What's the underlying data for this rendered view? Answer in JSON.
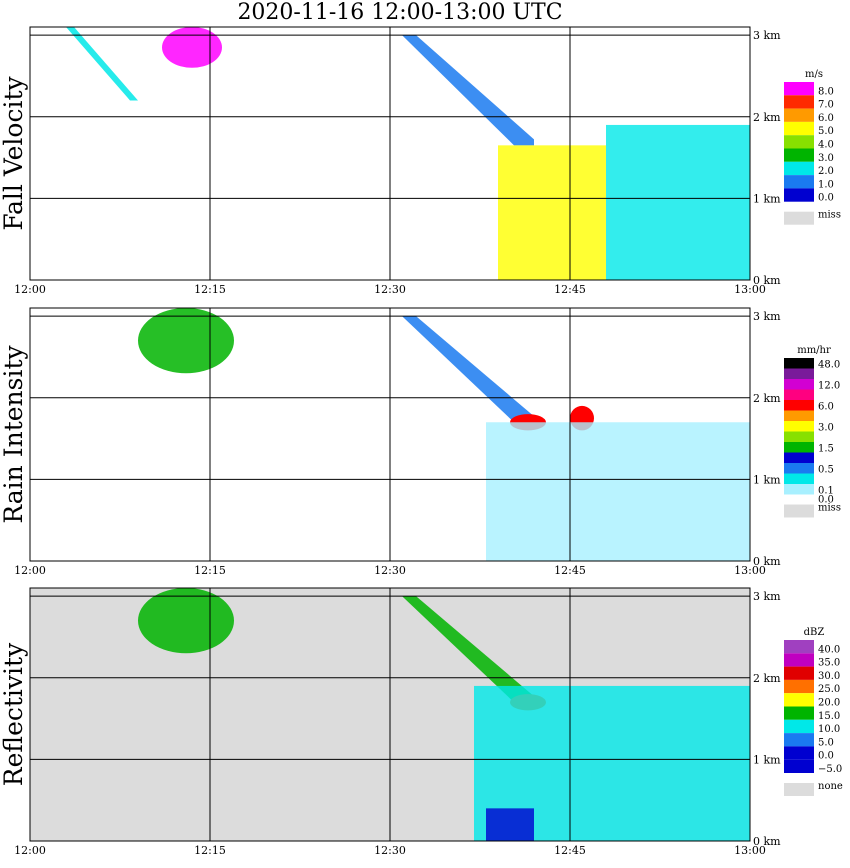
{
  "title": "2020-11-16   12:00-13:00 UTC",
  "chart_data": [
    {
      "type": "heatmap",
      "ylabel": "Fall Velocity",
      "x_ticks": [
        "12:00",
        "12:15",
        "12:30",
        "12:45",
        "13:00"
      ],
      "y_ticks": [
        "0 km",
        "1 km",
        "2 km",
        "3 km"
      ],
      "ylim": [
        0,
        3.1
      ],
      "legend": {
        "unit": "m/s",
        "levels": [
          {
            "label": "8.0",
            "color": "#ff00ff"
          },
          {
            "label": "7.0",
            "color": "#ff2a00"
          },
          {
            "label": "6.0",
            "color": "#ff9a00"
          },
          {
            "label": "5.0",
            "color": "#ffff00"
          },
          {
            "label": "4.0",
            "color": "#88e000"
          },
          {
            "label": "3.0",
            "color": "#00b400"
          },
          {
            "label": "2.0",
            "color": "#00e8e8"
          },
          {
            "label": "1.0",
            "color": "#1a7af0"
          },
          {
            "label": "0.0",
            "color": "#0000d0"
          }
        ],
        "missing": {
          "label": "miss",
          "color": "#dcdcdc"
        }
      },
      "background": "#ffffff",
      "features": [
        {
          "x": [
            3,
            9
          ],
          "top": 3.1,
          "bottom": 2.2,
          "color": "#00e8e8",
          "shape": "streak"
        },
        {
          "x": [
            11,
            16
          ],
          "top": 3.1,
          "bottom": 2.6,
          "color": "#ff00ff",
          "shape": "blob"
        },
        {
          "x": [
            31,
            42
          ],
          "top": 3.0,
          "bottom": 1.65,
          "color": "#1a7af0",
          "shape": "slant"
        },
        {
          "x": [
            39,
            48
          ],
          "top": 1.65,
          "bottom": 0.0,
          "color": "#ffff00",
          "shape": "column"
        },
        {
          "x": [
            48,
            60
          ],
          "top": 1.9,
          "bottom": 0.0,
          "color": "#00e8e8",
          "shape": "column"
        }
      ]
    },
    {
      "type": "heatmap",
      "ylabel": "Rain Intensity",
      "x_ticks": [
        "12:00",
        "12:15",
        "12:30",
        "12:45",
        "13:00"
      ],
      "y_ticks": [
        "0 km",
        "1 km",
        "2 km",
        "3 km"
      ],
      "ylim": [
        0,
        3.1
      ],
      "legend": {
        "unit": "mm/hr",
        "levels": [
          {
            "label": "48.0",
            "color": "#000000"
          },
          {
            "label": "",
            "color": "#7a1a9a"
          },
          {
            "label": "12.0",
            "color": "#d200d2"
          },
          {
            "label": "",
            "color": "#ff0080"
          },
          {
            "label": "6.0",
            "color": "#ff0000"
          },
          {
            "label": "",
            "color": "#ff9a00"
          },
          {
            "label": "3.0",
            "color": "#ffff00"
          },
          {
            "label": "",
            "color": "#88e000"
          },
          {
            "label": "1.5",
            "color": "#00b400"
          },
          {
            "label": "",
            "color": "#0000d0"
          },
          {
            "label": "0.5",
            "color": "#1a7af0"
          },
          {
            "label": "",
            "color": "#00e8e8"
          },
          {
            "label": "0.1",
            "color": "#a8f0ff"
          }
        ],
        "zero_label": "0.0",
        "missing": {
          "label": "miss",
          "color": "#dcdcdc"
        }
      },
      "background": "#ffffff",
      "features": [
        {
          "x": [
            9,
            17
          ],
          "top": 3.1,
          "bottom": 2.3,
          "color": "#00b400",
          "shape": "blob"
        },
        {
          "x": [
            31,
            42
          ],
          "top": 3.0,
          "bottom": 1.7,
          "color": "#1a7af0",
          "shape": "slant"
        },
        {
          "x": [
            40,
            43
          ],
          "top": 1.8,
          "bottom": 1.6,
          "color": "#ff0000",
          "shape": "core"
        },
        {
          "x": [
            45,
            47
          ],
          "top": 1.9,
          "bottom": 1.6,
          "color": "#ff0000",
          "shape": "core"
        },
        {
          "x": [
            38,
            60
          ],
          "top": 1.7,
          "bottom": 0.0,
          "color": "#a8f0ff",
          "shape": "column"
        }
      ]
    },
    {
      "type": "heatmap",
      "ylabel": "Reflectivity",
      "x_ticks": [
        "12:00",
        "12:15",
        "12:30",
        "12:45",
        "13:00"
      ],
      "y_ticks": [
        "0 km",
        "1 km",
        "2 km",
        "3 km"
      ],
      "ylim": [
        0,
        3.1
      ],
      "legend": {
        "unit": "dBZ",
        "levels": [
          {
            "label": "40.0",
            "color": "#a040c0"
          },
          {
            "label": "35.0",
            "color": "#c000c0"
          },
          {
            "label": "30.0",
            "color": "#e00000"
          },
          {
            "label": "25.0",
            "color": "#ff7000"
          },
          {
            "label": "20.0",
            "color": "#ffff00"
          },
          {
            "label": "15.0",
            "color": "#00b400"
          },
          {
            "label": "10.0",
            "color": "#00e8e8"
          },
          {
            "label": "5.0",
            "color": "#1a7af0"
          },
          {
            "label": "0.0",
            "color": "#0000d0"
          },
          {
            "label": "−5.0",
            "color": "#0000d0"
          }
        ],
        "missing": {
          "label": "none",
          "color": "#dcdcdc"
        }
      },
      "background": "#dcdcdc",
      "features": [
        {
          "x": [
            9,
            17
          ],
          "top": 3.1,
          "bottom": 2.3,
          "color": "#00b400",
          "shape": "blob"
        },
        {
          "x": [
            31,
            42
          ],
          "top": 3.0,
          "bottom": 1.7,
          "color": "#00b400",
          "shape": "slant"
        },
        {
          "x": [
            40,
            43
          ],
          "top": 1.8,
          "bottom": 1.6,
          "color": "#ff7000",
          "shape": "core"
        },
        {
          "x": [
            37,
            60
          ],
          "top": 1.9,
          "bottom": 0.0,
          "color": "#00e8e8",
          "shape": "column"
        },
        {
          "x": [
            38,
            42
          ],
          "top": 0.4,
          "bottom": 0.0,
          "color": "#0000d0",
          "shape": "base"
        }
      ]
    }
  ]
}
